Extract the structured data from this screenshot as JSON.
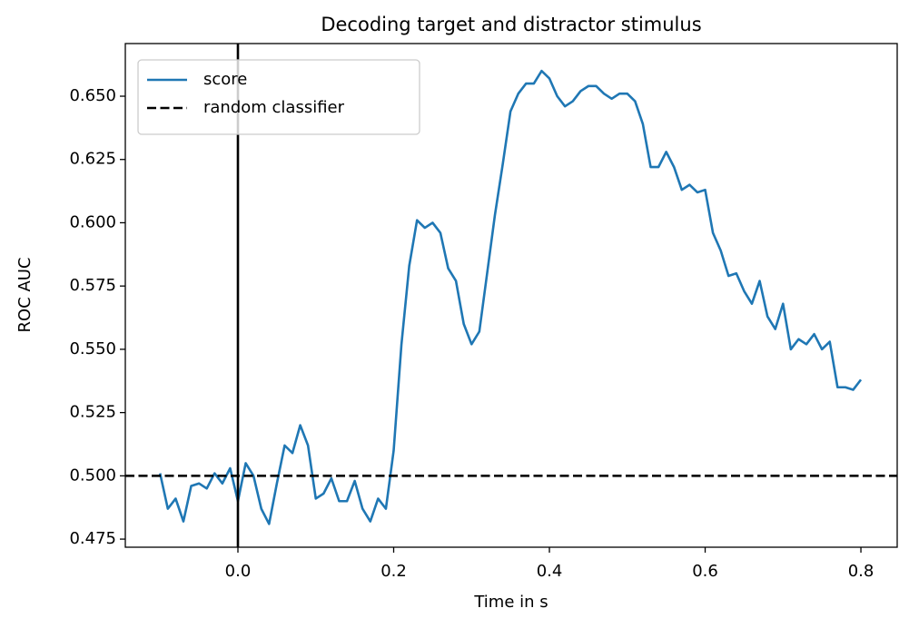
{
  "chart_data": {
    "type": "line",
    "title": "Decoding target and distractor stimulus",
    "xlabel": "Time in s",
    "ylabel": "ROC AUC",
    "x": [
      -0.1,
      -0.09,
      -0.08,
      -0.07,
      -0.06,
      -0.05,
      -0.04,
      -0.03,
      -0.02,
      -0.01,
      0.0,
      0.01,
      0.02,
      0.03,
      0.04,
      0.05,
      0.06,
      0.07,
      0.08,
      0.09,
      0.1,
      0.11,
      0.12,
      0.13,
      0.14,
      0.15,
      0.16,
      0.17,
      0.18,
      0.19,
      0.2,
      0.21,
      0.22,
      0.23,
      0.24,
      0.25,
      0.26,
      0.27,
      0.28,
      0.29,
      0.3,
      0.31,
      0.32,
      0.33,
      0.34,
      0.35,
      0.36,
      0.37,
      0.38,
      0.39,
      0.4,
      0.41,
      0.42,
      0.43,
      0.44,
      0.45,
      0.46,
      0.47,
      0.48,
      0.49,
      0.5,
      0.51,
      0.52,
      0.53,
      0.54,
      0.55,
      0.56,
      0.57,
      0.58,
      0.59,
      0.6,
      0.61,
      0.62,
      0.63,
      0.64,
      0.65,
      0.66,
      0.67,
      0.68,
      0.69,
      0.7,
      0.71,
      0.72,
      0.73,
      0.74,
      0.75,
      0.76,
      0.77,
      0.78,
      0.79,
      0.8
    ],
    "series": [
      {
        "name": "score",
        "color": "#1f77b4",
        "values": [
          0.501,
          0.487,
          0.491,
          0.482,
          0.496,
          0.497,
          0.495,
          0.501,
          0.497,
          0.503,
          0.49,
          0.505,
          0.5,
          0.487,
          0.481,
          0.497,
          0.512,
          0.509,
          0.52,
          0.512,
          0.491,
          0.493,
          0.499,
          0.49,
          0.49,
          0.498,
          0.487,
          0.482,
          0.491,
          0.487,
          0.51,
          0.552,
          0.583,
          0.601,
          0.598,
          0.6,
          0.596,
          0.582,
          0.577,
          0.56,
          0.552,
          0.557,
          0.58,
          0.603,
          0.623,
          0.644,
          0.651,
          0.655,
          0.655,
          0.66,
          0.657,
          0.65,
          0.646,
          0.648,
          0.652,
          0.654,
          0.654,
          0.651,
          0.649,
          0.651,
          0.651,
          0.648,
          0.639,
          0.622,
          0.622,
          0.628,
          0.622,
          0.613,
          0.615,
          0.612,
          0.613,
          0.596,
          0.589,
          0.579,
          0.58,
          0.573,
          0.568,
          0.577,
          0.563,
          0.558,
          0.568,
          0.55,
          0.554,
          0.552,
          0.556,
          0.55,
          0.553,
          0.535,
          0.535,
          0.534,
          0.538
        ]
      }
    ],
    "hline": {
      "name": "random classifier",
      "value": 0.5,
      "color": "#000000",
      "style": "dashed"
    },
    "vline": {
      "value": 0.0,
      "color": "#000000"
    },
    "xlim": [
      -0.1446,
      0.8466
    ],
    "ylim": [
      0.4718,
      0.6708
    ],
    "xticks": [
      {
        "value": 0.0,
        "label": "0.0"
      },
      0.2,
      0.4,
      0.6,
      0.8
    ],
    "yticks": [
      {
        "value": 0.475,
        "label": "0.475"
      },
      {
        "value": 0.5,
        "label": "0.500"
      },
      {
        "value": 0.525,
        "label": "0.525"
      },
      {
        "value": 0.55,
        "label": "0.550"
      },
      {
        "value": 0.575,
        "label": "0.575"
      },
      {
        "value": 0.6,
        "label": "0.600"
      },
      {
        "value": 0.625,
        "label": "0.625"
      },
      {
        "value": 0.65,
        "label": "0.650"
      }
    ],
    "legend": "upper left"
  }
}
